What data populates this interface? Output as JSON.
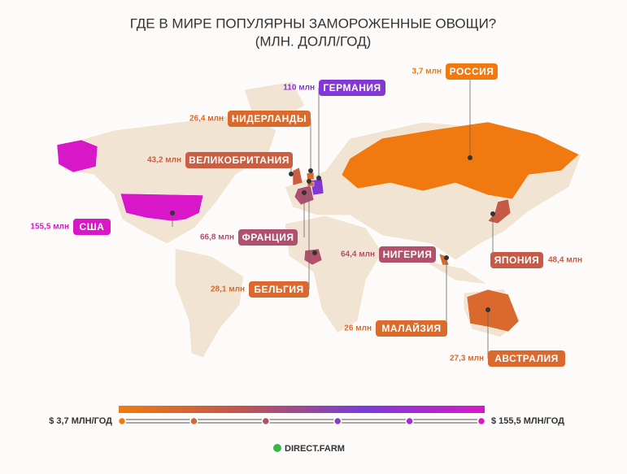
{
  "title": [
    "ГДЕ В МИРЕ ПОПУЛЯРНЫ ЗАМОРОЖЕННЫЕ ОВОЩИ?",
    "(МЛН. ДОЛЛ/ГОД)"
  ],
  "countries": [
    {
      "name": "РОССИЯ",
      "value": 3.7,
      "value_label": "3,7 млн"
    },
    {
      "name": "ГЕРМАНИЯ",
      "value": 110,
      "value_label": "110 млн"
    },
    {
      "name": "НИДЕРЛАНДЫ",
      "value": 26.4,
      "value_label": "26,4 млн"
    },
    {
      "name": "ВЕЛИКОБРИТАНИЯ",
      "value": 43.2,
      "value_label": "43,2 млн"
    },
    {
      "name": "США",
      "value": 155.5,
      "value_label": "155,5 млн"
    },
    {
      "name": "ФРАНЦИЯ",
      "value": 66.8,
      "value_label": "66,8 млн"
    },
    {
      "name": "НИГЕРИЯ",
      "value": 64.4,
      "value_label": "64,4 млн"
    },
    {
      "name": "ЯПОНИЯ",
      "value": 48.4,
      "value_label": "48,4 млн"
    },
    {
      "name": "БЕЛЬГИЯ",
      "value": 28.1,
      "value_label": "28,1 млн"
    },
    {
      "name": "МАЛАЙЗИЯ",
      "value": 26,
      "value_label": "26 млн"
    },
    {
      "name": "АВСТРАЛИЯ",
      "value": 27.3,
      "value_label": "27,3 млн"
    }
  ],
  "scale": {
    "colors": [
      "#f07a10",
      "#c0564e",
      "#7a3cd8",
      "#d818c8"
    ],
    "min": {
      "value": 3.7,
      "label": "$ 3,7 МЛН/ГОД"
    },
    "max": {
      "value": 155.5,
      "label": "$ 155,5 МЛН/ГОД"
    }
  },
  "brand": "DIRECT.FARM"
}
